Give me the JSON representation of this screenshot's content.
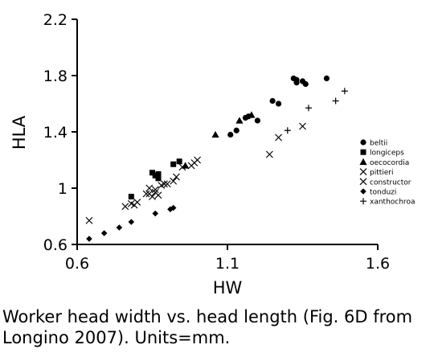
{
  "chart_data": {
    "type": "scatter",
    "xlabel": "HW",
    "ylabel": "HLA",
    "xlim": [
      0.6,
      1.6
    ],
    "ylim": [
      0.6,
      2.2
    ],
    "xticks": [
      "0.6",
      "1.1",
      "1.6"
    ],
    "yticks": [
      "0.6",
      "1",
      "1.4",
      "1.8",
      "2.2"
    ],
    "grid": false,
    "legend_position": "right",
    "series": [
      {
        "name": "beltii",
        "marker": "circle",
        "points": [
          [
            1.11,
            1.38
          ],
          [
            1.13,
            1.41
          ],
          [
            1.16,
            1.5
          ],
          [
            1.17,
            1.51
          ],
          [
            1.2,
            1.48
          ],
          [
            1.25,
            1.62
          ],
          [
            1.27,
            1.6
          ],
          [
            1.32,
            1.78
          ],
          [
            1.33,
            1.77
          ],
          [
            1.33,
            1.75
          ],
          [
            1.35,
            1.76
          ],
          [
            1.36,
            1.74
          ],
          [
            1.43,
            1.78
          ]
        ]
      },
      {
        "name": "longiceps",
        "marker": "square",
        "points": [
          [
            0.78,
            0.94
          ],
          [
            0.85,
            1.11
          ],
          [
            0.86,
            1.09
          ],
          [
            0.87,
            1.07
          ],
          [
            0.87,
            1.1
          ],
          [
            0.92,
            1.17
          ],
          [
            0.94,
            1.19
          ]
        ]
      },
      {
        "name": "oecocordia",
        "marker": "triangle",
        "points": [
          [
            0.96,
            1.16
          ],
          [
            1.06,
            1.38
          ],
          [
            1.14,
            1.48
          ],
          [
            1.18,
            1.52
          ]
        ]
      },
      {
        "name": "pittieri",
        "marker": "x",
        "points": [
          [
            0.64,
            0.77
          ],
          [
            0.76,
            0.87
          ],
          [
            0.78,
            0.89
          ],
          [
            0.79,
            0.88
          ],
          [
            0.8,
            0.9
          ],
          [
            0.83,
            0.96
          ],
          [
            0.84,
            1.0
          ],
          [
            0.85,
            0.94
          ],
          [
            0.86,
            0.97
          ],
          [
            0.87,
            0.95
          ],
          [
            0.88,
            1.02
          ],
          [
            0.9,
            1.03
          ],
          [
            0.92,
            1.05
          ],
          [
            0.93,
            1.08
          ],
          [
            0.95,
            1.15
          ],
          [
            0.98,
            1.16
          ],
          [
            0.99,
            1.18
          ],
          [
            1.0,
            1.2
          ]
        ]
      },
      {
        "name": "constructor",
        "marker": "x",
        "points": [
          [
            0.84,
            0.96
          ],
          [
            0.86,
            0.99
          ],
          [
            0.89,
            1.03
          ],
          [
            1.24,
            1.24
          ],
          [
            1.27,
            1.36
          ],
          [
            1.35,
            1.44
          ]
        ]
      },
      {
        "name": "tonduzi",
        "marker": "diamond",
        "points": [
          [
            0.64,
            0.64
          ],
          [
            0.69,
            0.68
          ],
          [
            0.74,
            0.72
          ],
          [
            0.78,
            0.76
          ],
          [
            0.86,
            0.82
          ],
          [
            0.91,
            0.85
          ],
          [
            0.92,
            0.86
          ]
        ]
      },
      {
        "name": "xanthochroa",
        "marker": "plus",
        "points": [
          [
            1.3,
            1.41
          ],
          [
            1.37,
            1.57
          ],
          [
            1.46,
            1.62
          ],
          [
            1.49,
            1.69
          ]
        ]
      }
    ]
  },
  "caption": "Worker head width vs. head length (Fig. 6D from Longino 2007). Units=mm."
}
